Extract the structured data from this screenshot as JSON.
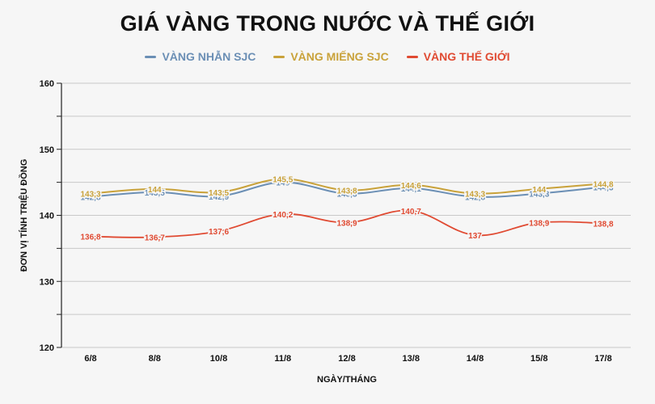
{
  "chart_data": {
    "type": "line",
    "title": "GIÁ VÀNG TRONG NƯỚC VÀ THẾ GIỚI",
    "xlabel": "NGÀY/THÁNG",
    "ylabel": "ĐƠN VỊ TÍNH TRIỆU ĐỒNG",
    "categories": [
      "6/8",
      "8/8",
      "10/8",
      "11/8",
      "12/8",
      "13/8",
      "14/8",
      "15/8",
      "17/8"
    ],
    "ylim": [
      120,
      160
    ],
    "yticks": [
      "120",
      "130",
      "140",
      "150",
      "160"
    ],
    "legend_position": "top",
    "grid": true,
    "series": [
      {
        "name": "VÀNG NHẪN SJC",
        "color": "#6b8fb5",
        "values": [
          142.8,
          143.5,
          142.9,
          145.0,
          143.3,
          144.1,
          142.8,
          143.3,
          144.3
        ],
        "labels": [
          "142,8",
          "143,5",
          "142,9",
          "145",
          "143,3",
          "144,1",
          "142,8",
          "143,3",
          "144,3"
        ]
      },
      {
        "name": "VÀNG MIẾNG SJC",
        "color": "#c9a23a",
        "values": [
          143.3,
          144.0,
          143.5,
          145.5,
          143.8,
          144.6,
          143.3,
          144.0,
          144.8
        ],
        "labels": [
          "143,3",
          "144",
          "143,5",
          "145,5",
          "143,8",
          "144,6",
          "143,3",
          "144",
          "144,8"
        ]
      },
      {
        "name": "VÀNG THẾ GIỚI",
        "color": "#e04a32",
        "values": [
          136.8,
          136.7,
          137.6,
          140.2,
          138.9,
          140.7,
          137.0,
          138.9,
          138.8
        ],
        "labels": [
          "136,8",
          "136,7",
          "137,6",
          "140,2",
          "138,9",
          "140,7",
          "137",
          "138,9",
          "138,8"
        ]
      }
    ]
  }
}
